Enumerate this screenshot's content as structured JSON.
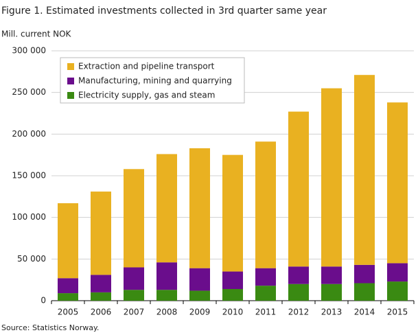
{
  "chart_data": {
    "type": "stacked-bar",
    "title": "Figure 1. Estimated investments collected in 3rd quarter same year",
    "y_label": "Mill. current NOK",
    "source": "Source: Statistics Norway.",
    "categories": [
      "2005",
      "2006",
      "2007",
      "2008",
      "2009",
      "2010",
      "2011",
      "2012",
      "2013",
      "2014",
      "2015"
    ],
    "series": [
      {
        "name": "Extraction and pipeline transport",
        "color": "#e9b121",
        "values": [
          90000,
          100000,
          118000,
          130000,
          144000,
          140000,
          152000,
          186000,
          214000,
          228000,
          193000
        ]
      },
      {
        "name": "Manufacturing, mining and quarrying",
        "color": "#6a0d8c",
        "values": [
          18000,
          21000,
          27000,
          33000,
          27000,
          21000,
          21000,
          21000,
          21000,
          22000,
          22000
        ]
      },
      {
        "name": "Electricity supply, gas and steam",
        "color": "#3a8a12",
        "values": [
          9000,
          10000,
          13000,
          13000,
          12000,
          14000,
          18000,
          20000,
          20000,
          21000,
          23000
        ]
      }
    ],
    "ylim": [
      0,
      300000
    ],
    "yticks": [
      0,
      {
        "value": 50000,
        "label": "50 000"
      },
      {
        "value": 100000,
        "label": "100 000"
      },
      {
        "value": 150000,
        "label": "150 000"
      },
      {
        "value": 200000,
        "label": "200 000"
      },
      {
        "value": 250000,
        "label": "250 000"
      },
      {
        "value": 300000,
        "label": "300 000"
      }
    ],
    "grid": true
  }
}
